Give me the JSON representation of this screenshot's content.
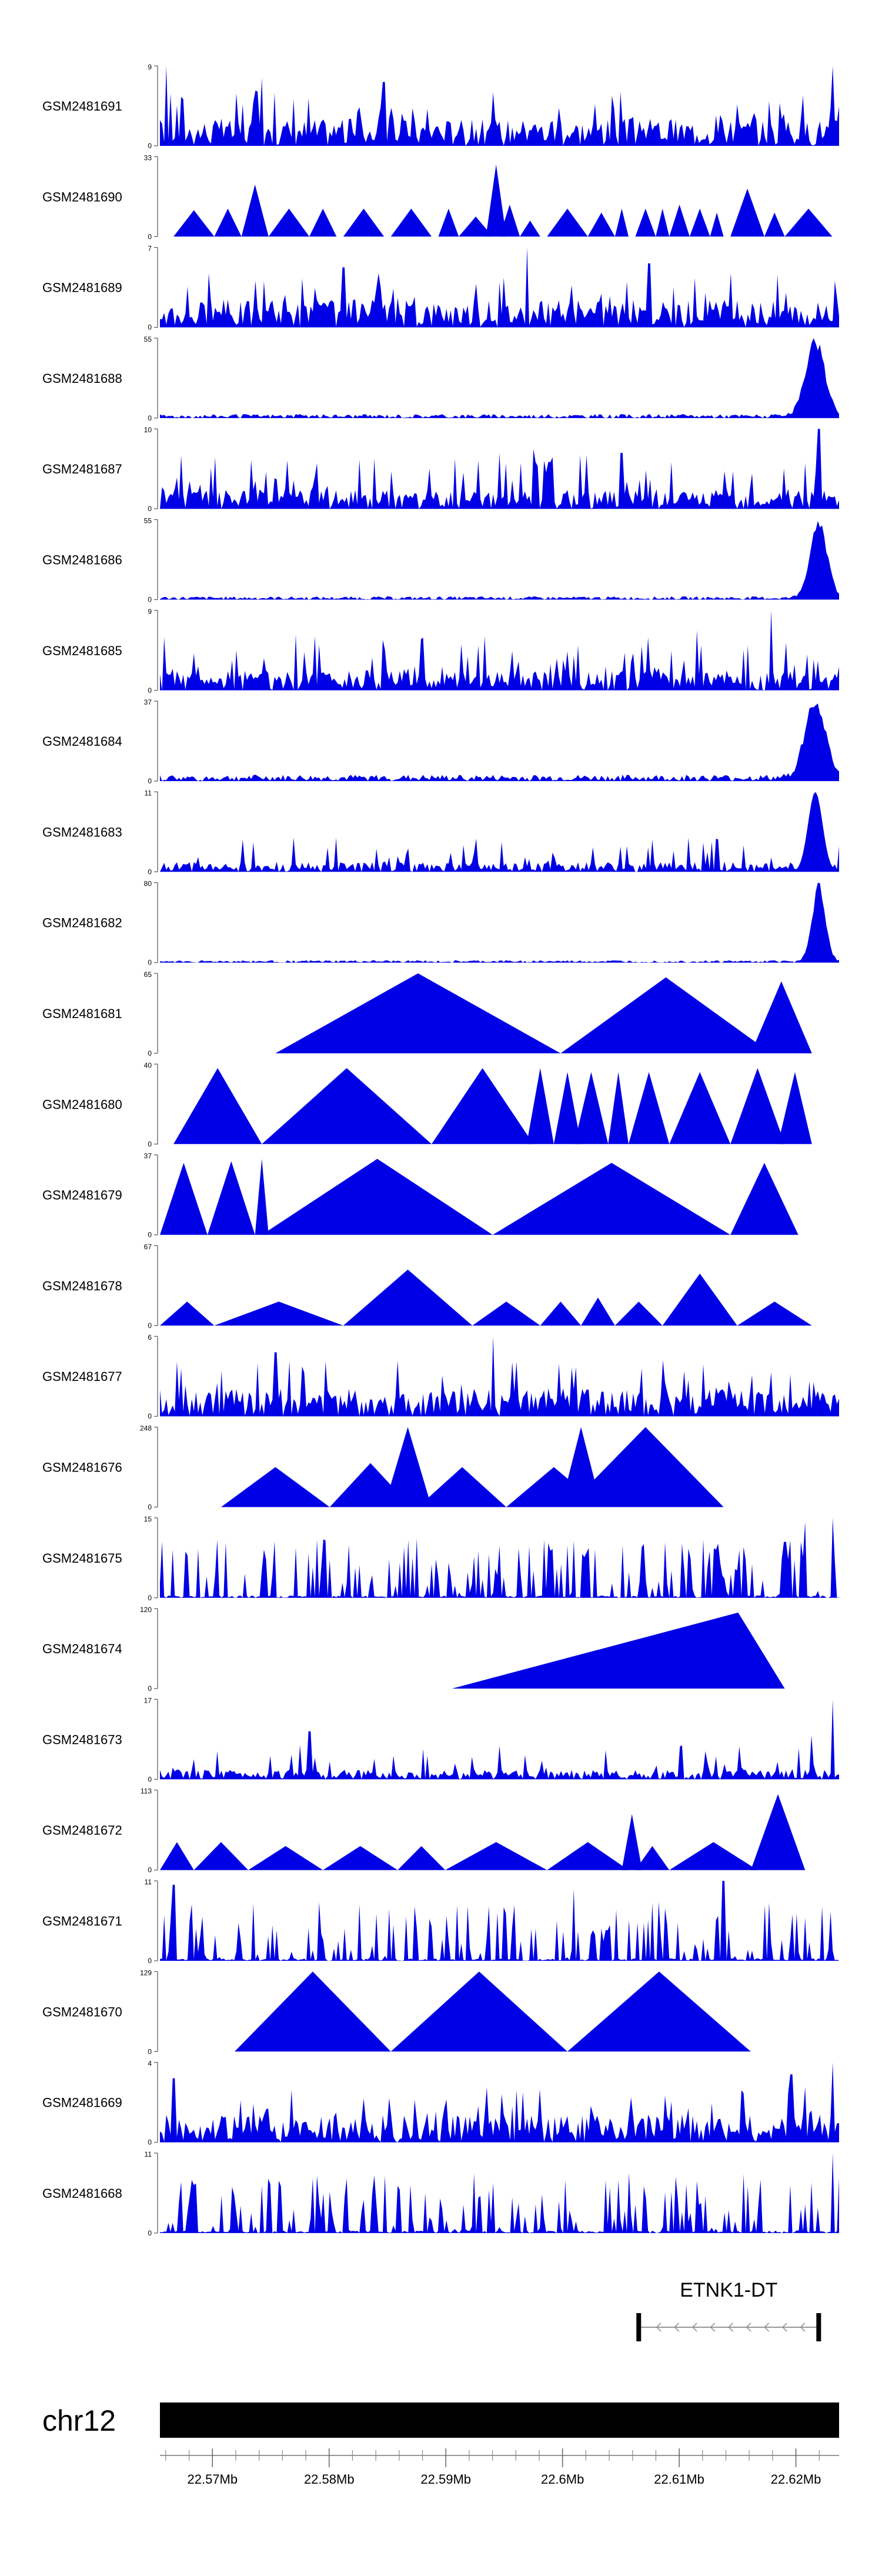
{
  "chart_data": {
    "type": "area",
    "chromosome": "chr12",
    "x_range_mb": [
      22.5655,
      22.6237
    ],
    "x_ticks": [
      "22.57Mb",
      "22.58Mb",
      "22.59Mb",
      "22.6Mb",
      "22.61Mb",
      "22.62Mb"
    ],
    "x_tick_values_mb": [
      22.57,
      22.58,
      22.59,
      22.6,
      22.61,
      22.62
    ],
    "color": "#0000e6",
    "tracks": [
      {
        "name": "GSM2481691",
        "ymax": "9",
        "ymin": "0",
        "pattern": "noise",
        "density": "dense",
        "peaks": [
          {
            "x": 0.01,
            "h": 1.0
          },
          {
            "x": 0.15,
            "h": 0.85
          },
          {
            "x": 0.33,
            "h": 0.8
          },
          {
            "x": 0.99,
            "h": 1.0
          }
        ]
      },
      {
        "name": "GSM2481690",
        "ymax": "33",
        "ymin": "0",
        "pattern": "tri",
        "tris": [
          [
            0.02,
            0.08,
            0.33
          ],
          [
            0.08,
            0.12,
            0.35
          ],
          [
            0.12,
            0.16,
            0.65
          ],
          [
            0.16,
            0.22,
            0.35
          ],
          [
            0.22,
            0.26,
            0.35
          ],
          [
            0.27,
            0.33,
            0.35
          ],
          [
            0.34,
            0.4,
            0.35
          ],
          [
            0.41,
            0.44,
            0.35
          ],
          [
            0.44,
            0.49,
            0.25
          ],
          [
            0.48,
            0.51,
            0.9
          ],
          [
            0.5,
            0.53,
            0.4
          ],
          [
            0.53,
            0.56,
            0.2
          ],
          [
            0.57,
            0.63,
            0.35
          ],
          [
            0.63,
            0.67,
            0.3
          ],
          [
            0.67,
            0.69,
            0.35
          ],
          [
            0.7,
            0.73,
            0.35
          ],
          [
            0.73,
            0.75,
            0.35
          ],
          [
            0.75,
            0.78,
            0.4
          ],
          [
            0.78,
            0.81,
            0.35
          ],
          [
            0.81,
            0.83,
            0.3
          ],
          [
            0.84,
            0.89,
            0.6
          ],
          [
            0.89,
            0.92,
            0.3
          ],
          [
            0.92,
            0.99,
            0.35
          ]
        ]
      },
      {
        "name": "GSM2481689",
        "ymax": "7",
        "ymin": "0",
        "pattern": "noise",
        "density": "dense",
        "peaks": [
          {
            "x": 0.54,
            "h": 1.0
          },
          {
            "x": 0.72,
            "h": 0.8
          },
          {
            "x": 0.27,
            "h": 0.75
          }
        ]
      },
      {
        "name": "GSM2481688",
        "ymax": "55",
        "ymin": "0",
        "pattern": "terminal",
        "peak_x": 0.965,
        "width": 0.02,
        "noise": 0.05
      },
      {
        "name": "GSM2481687",
        "ymax": "10",
        "ymin": "0",
        "pattern": "noise",
        "density": "medium",
        "peaks": [
          {
            "x": 0.97,
            "h": 1.0
          },
          {
            "x": 0.55,
            "h": 0.75
          },
          {
            "x": 0.68,
            "h": 0.7
          }
        ]
      },
      {
        "name": "GSM2481686",
        "ymax": "55",
        "ymin": "0",
        "pattern": "terminal",
        "peak_x": 0.97,
        "width": 0.018,
        "noise": 0.04
      },
      {
        "name": "GSM2481685",
        "ymax": "9",
        "ymin": "0",
        "pattern": "noise",
        "density": "medium",
        "peaks": [
          {
            "x": 0.9,
            "h": 1.0
          },
          {
            "x": 0.2,
            "h": 0.7
          },
          {
            "x": 0.79,
            "h": 0.75
          }
        ]
      },
      {
        "name": "GSM2481684",
        "ymax": "37",
        "ymin": "0",
        "pattern": "terminal",
        "peak_x": 0.965,
        "width": 0.022,
        "noise": 0.08
      },
      {
        "name": "GSM2481683",
        "ymax": "11",
        "ymin": "0",
        "pattern": "noise_terminal",
        "peak_x": 0.965,
        "density": "sparse"
      },
      {
        "name": "GSM2481682",
        "ymax": "80",
        "ymin": "0",
        "pattern": "terminal",
        "peak_x": 0.97,
        "width": 0.014,
        "noise": 0.03
      },
      {
        "name": "GSM2481681",
        "ymax": "65",
        "ymin": "0",
        "pattern": "tri",
        "tris": [
          [
            0.17,
            0.59,
            1.0
          ],
          [
            0.59,
            0.9,
            0.95
          ],
          [
            0.87,
            0.96,
            0.9
          ]
        ]
      },
      {
        "name": "GSM2481680",
        "ymax": "40",
        "ymin": "0",
        "pattern": "tri",
        "tris": [
          [
            0.02,
            0.15,
            0.95
          ],
          [
            0.15,
            0.4,
            0.95
          ],
          [
            0.4,
            0.55,
            0.95
          ],
          [
            0.54,
            0.58,
            0.95
          ],
          [
            0.58,
            0.62,
            0.9
          ],
          [
            0.61,
            0.66,
            0.9
          ],
          [
            0.66,
            0.69,
            0.9
          ],
          [
            0.69,
            0.75,
            0.9
          ],
          [
            0.75,
            0.84,
            0.9
          ],
          [
            0.84,
            0.92,
            0.95
          ],
          [
            0.91,
            0.96,
            0.9
          ]
        ]
      },
      {
        "name": "GSM2481679",
        "ymax": "37",
        "ymin": "0",
        "pattern": "tri",
        "tris": [
          [
            0.0,
            0.07,
            0.9
          ],
          [
            0.07,
            0.14,
            0.92
          ],
          [
            0.14,
            0.16,
            0.95
          ],
          [
            0.15,
            0.49,
            0.95
          ],
          [
            0.49,
            0.84,
            0.9
          ],
          [
            0.84,
            0.94,
            0.9
          ]
        ]
      },
      {
        "name": "GSM2481678",
        "ymax": "67",
        "ymin": "0",
        "pattern": "tri",
        "tris": [
          [
            0.0,
            0.08,
            0.3
          ],
          [
            0.08,
            0.27,
            0.3
          ],
          [
            0.27,
            0.46,
            0.7
          ],
          [
            0.46,
            0.56,
            0.3
          ],
          [
            0.56,
            0.62,
            0.3
          ],
          [
            0.62,
            0.67,
            0.35
          ],
          [
            0.67,
            0.74,
            0.3
          ],
          [
            0.74,
            0.85,
            0.65
          ],
          [
            0.85,
            0.96,
            0.3
          ]
        ]
      },
      {
        "name": "GSM2481677",
        "ymax": "6",
        "ymin": "0",
        "pattern": "noise",
        "density": "dense",
        "peaks": [
          {
            "x": 0.49,
            "h": 1.0
          },
          {
            "x": 0.17,
            "h": 0.8
          },
          {
            "x": 0.74,
            "h": 0.7
          }
        ]
      },
      {
        "name": "GSM2481676",
        "ymax": "248",
        "ymin": "0",
        "pattern": "tri",
        "tris": [
          [
            0.09,
            0.25,
            0.5
          ],
          [
            0.25,
            0.37,
            0.55
          ],
          [
            0.33,
            0.4,
            1.0
          ],
          [
            0.38,
            0.51,
            0.5
          ],
          [
            0.51,
            0.65,
            0.5
          ],
          [
            0.59,
            0.65,
            1.0
          ],
          [
            0.6,
            0.83,
            1.0
          ]
        ]
      },
      {
        "name": "GSM2481675",
        "ymax": "15",
        "ymin": "0",
        "pattern": "noise",
        "density": "spiky",
        "peaks": [
          {
            "x": 0.99,
            "h": 1.0
          },
          {
            "x": 0.95,
            "h": 0.95
          },
          {
            "x": 0.92,
            "h": 0.7
          }
        ]
      },
      {
        "name": "GSM2481674",
        "ymax": "120",
        "ymin": "0",
        "pattern": "tri",
        "tris": [
          [
            0.43,
            0.92,
            0.95
          ]
        ],
        "skew": 0.86
      },
      {
        "name": "GSM2481673",
        "ymax": "17",
        "ymin": "0",
        "pattern": "noise",
        "density": "sparse",
        "peaks": [
          {
            "x": 0.99,
            "h": 1.0
          },
          {
            "x": 0.22,
            "h": 0.6
          },
          {
            "x": 0.96,
            "h": 0.55
          }
        ]
      },
      {
        "name": "GSM2481672",
        "ymax": "113",
        "ymin": "0",
        "pattern": "tri",
        "tris": [
          [
            0.0,
            0.05,
            0.35
          ],
          [
            0.05,
            0.13,
            0.35
          ],
          [
            0.13,
            0.24,
            0.3
          ],
          [
            0.24,
            0.35,
            0.3
          ],
          [
            0.35,
            0.42,
            0.3
          ],
          [
            0.42,
            0.57,
            0.35
          ],
          [
            0.57,
            0.69,
            0.35
          ],
          [
            0.68,
            0.71,
            0.7
          ],
          [
            0.7,
            0.75,
            0.3
          ],
          [
            0.75,
            0.88,
            0.35
          ],
          [
            0.87,
            0.95,
            0.95
          ]
        ]
      },
      {
        "name": "GSM2481671",
        "ymax": "11",
        "ymin": "0",
        "pattern": "noise",
        "density": "spiky",
        "peaks": [
          {
            "x": 0.83,
            "h": 1.0
          },
          {
            "x": 0.02,
            "h": 0.95
          },
          {
            "x": 0.61,
            "h": 0.9
          }
        ]
      },
      {
        "name": "GSM2481670",
        "ymax": "129",
        "ymin": "0",
        "pattern": "tri",
        "tris": [
          [
            0.11,
            0.34,
            1.0
          ],
          [
            0.34,
            0.6,
            1.0
          ],
          [
            0.6,
            0.87,
            1.0
          ]
        ]
      },
      {
        "name": "GSM2481669",
        "ymax": "4",
        "ymin": "0",
        "pattern": "noise",
        "density": "dense",
        "peaks": [
          {
            "x": 0.99,
            "h": 1.0
          },
          {
            "x": 0.93,
            "h": 0.85
          },
          {
            "x": 0.02,
            "h": 0.8
          }
        ]
      },
      {
        "name": "GSM2481668",
        "ymax": "11",
        "ymin": "0",
        "pattern": "noise",
        "density": "spiky",
        "peaks": [
          {
            "x": 0.99,
            "h": 1.0
          },
          {
            "x": 0.69,
            "h": 0.75
          },
          {
            "x": 0.05,
            "h": 0.6
          }
        ]
      }
    ],
    "gene": {
      "name": "ETNK1-DT",
      "start_frac": 0.705,
      "end_frac": 0.97,
      "strand": "-"
    }
  }
}
